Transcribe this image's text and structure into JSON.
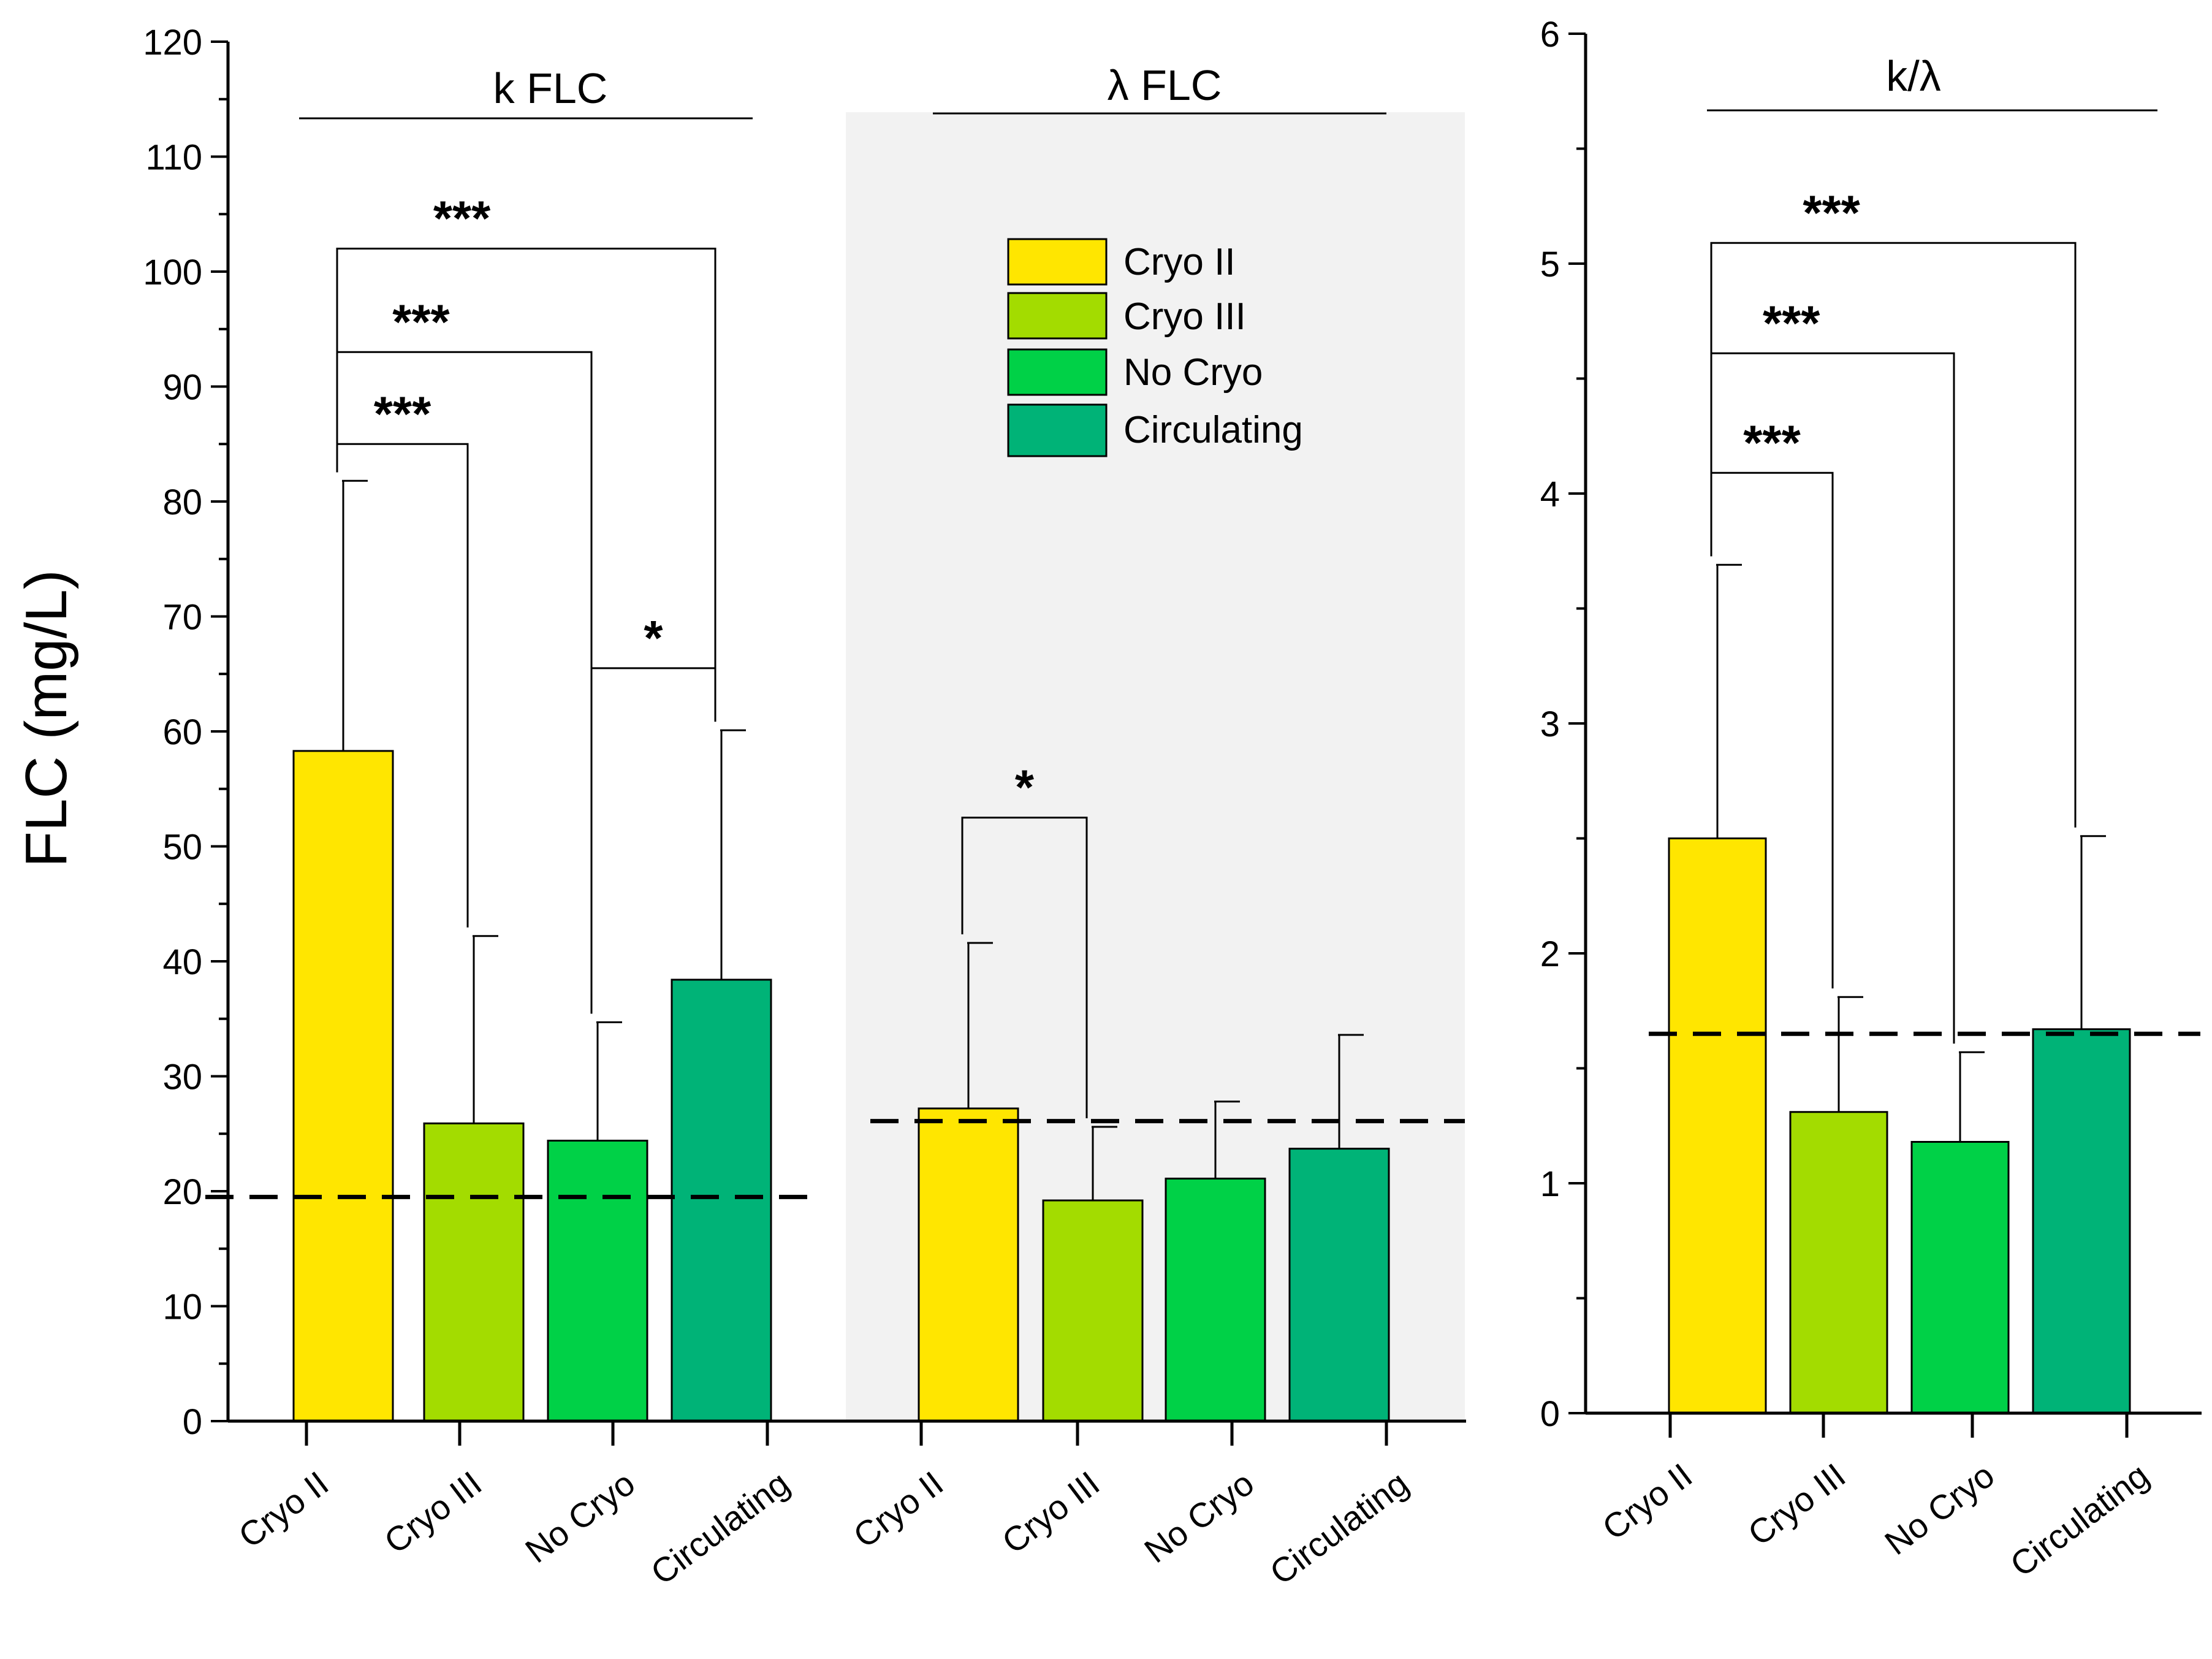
{
  "chart_data": [
    {
      "type": "bar",
      "title": "k FLC",
      "categories": [
        "Cryo II",
        "Cryo III",
        "No Cryo",
        "Circulating"
      ],
      "values": [
        58.3,
        25.9,
        24.4,
        38.4
      ],
      "errors": [
        23.5,
        16.3,
        10.3,
        21.7
      ],
      "ylabel": "FLC (mg/L)",
      "ylim": [
        0,
        120
      ],
      "yticks": [
        "0",
        "10",
        "20",
        "30",
        "40",
        "50",
        "60",
        "70",
        "80",
        "90",
        "100",
        "110",
        "120"
      ],
      "reference_line": 19.5,
      "significance": [
        {
          "from": 0,
          "to": 1,
          "label": "***",
          "level": 85
        },
        {
          "from": 0,
          "to": 2,
          "label": "***",
          "level": 93
        },
        {
          "from": 0,
          "to": 3,
          "label": "***",
          "level": 102
        },
        {
          "from": 2,
          "to": 3,
          "label": "*",
          "level": 65.5
        }
      ]
    },
    {
      "type": "bar",
      "title": "λ FLC",
      "categories": [
        "Cryo II",
        "Cryo III",
        "No Cryo",
        "Circulating"
      ],
      "values": [
        27.2,
        19.2,
        21.1,
        23.7
      ],
      "errors": [
        14.4,
        6.4,
        6.7,
        9.9
      ],
      "ylim": [
        0,
        120
      ],
      "reference_line": 26.1,
      "shaded_background": true,
      "significance": [
        {
          "from": 0,
          "to": 1,
          "label": "*",
          "level": 52.5
        }
      ]
    },
    {
      "type": "bar",
      "title": "k/λ",
      "categories": [
        "Cryo II",
        "Cryo III",
        "No Cryo",
        "Circulating"
      ],
      "values": [
        2.5,
        1.31,
        1.18,
        1.67
      ],
      "errors": [
        1.19,
        0.5,
        0.39,
        0.84
      ],
      "ylim": [
        0,
        6
      ],
      "yticks": [
        "0",
        "1",
        "2",
        "3",
        "4",
        "5",
        "6"
      ],
      "reference_line": 1.65,
      "significance": [
        {
          "from": 0,
          "to": 1,
          "label": "***",
          "level": 4.09
        },
        {
          "from": 0,
          "to": 2,
          "label": "***",
          "level": 4.61
        },
        {
          "from": 0,
          "to": 3,
          "label": "***",
          "level": 5.09
        }
      ]
    }
  ],
  "legend": {
    "entries": [
      {
        "label": "Cryo II",
        "color": "#FFE600"
      },
      {
        "label": "Cryo III",
        "color": "#A3DC00"
      },
      {
        "label": "No Cryo",
        "color": "#00D147"
      },
      {
        "label": "Circulating",
        "color": "#00B377"
      }
    ]
  },
  "colors": {
    "axis": "#000000",
    "shade": "#F2F2F2"
  }
}
